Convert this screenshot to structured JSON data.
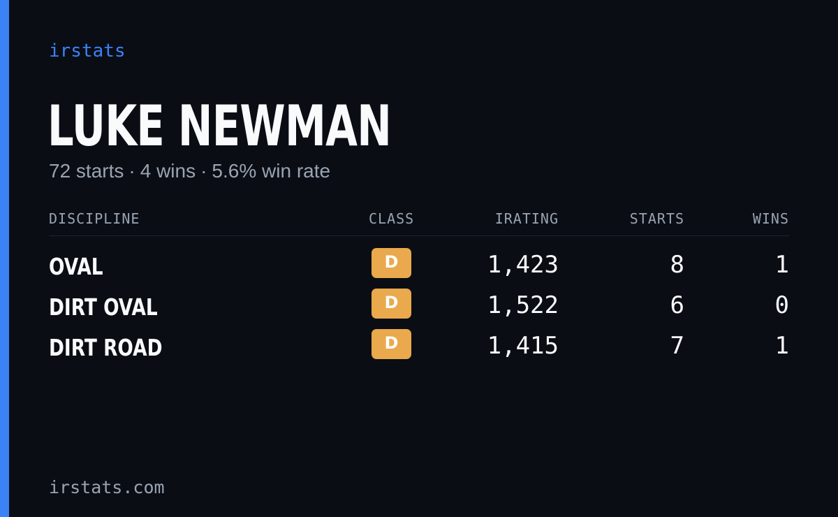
{
  "brand": "irstats",
  "driver": {
    "name": "LUKE NEWMAN",
    "starts_text": "72 starts",
    "wins_text": "4 wins",
    "win_rate_text": "5.6% win rate",
    "separator": "·"
  },
  "table": {
    "headers": {
      "discipline": "DISCIPLINE",
      "class": "CLASS",
      "irating": "IRATING",
      "starts": "STARTS",
      "wins": "WINS"
    },
    "rows": [
      {
        "discipline": "OVAL",
        "class": "D",
        "irating": "1,423",
        "starts": "8",
        "wins": "1"
      },
      {
        "discipline": "DIRT OVAL",
        "class": "D",
        "irating": "1,522",
        "starts": "6",
        "wins": "0"
      },
      {
        "discipline": "DIRT ROAD",
        "class": "D",
        "irating": "1,415",
        "starts": "7",
        "wins": "1"
      }
    ]
  },
  "footer": "irstats.com",
  "colors": {
    "background": "#0a0d14",
    "accent": "#3b82f6",
    "class_d_badge": "#e9a94c",
    "primary_text": "#f8fafc",
    "muted_text": "#9aa4b2"
  }
}
